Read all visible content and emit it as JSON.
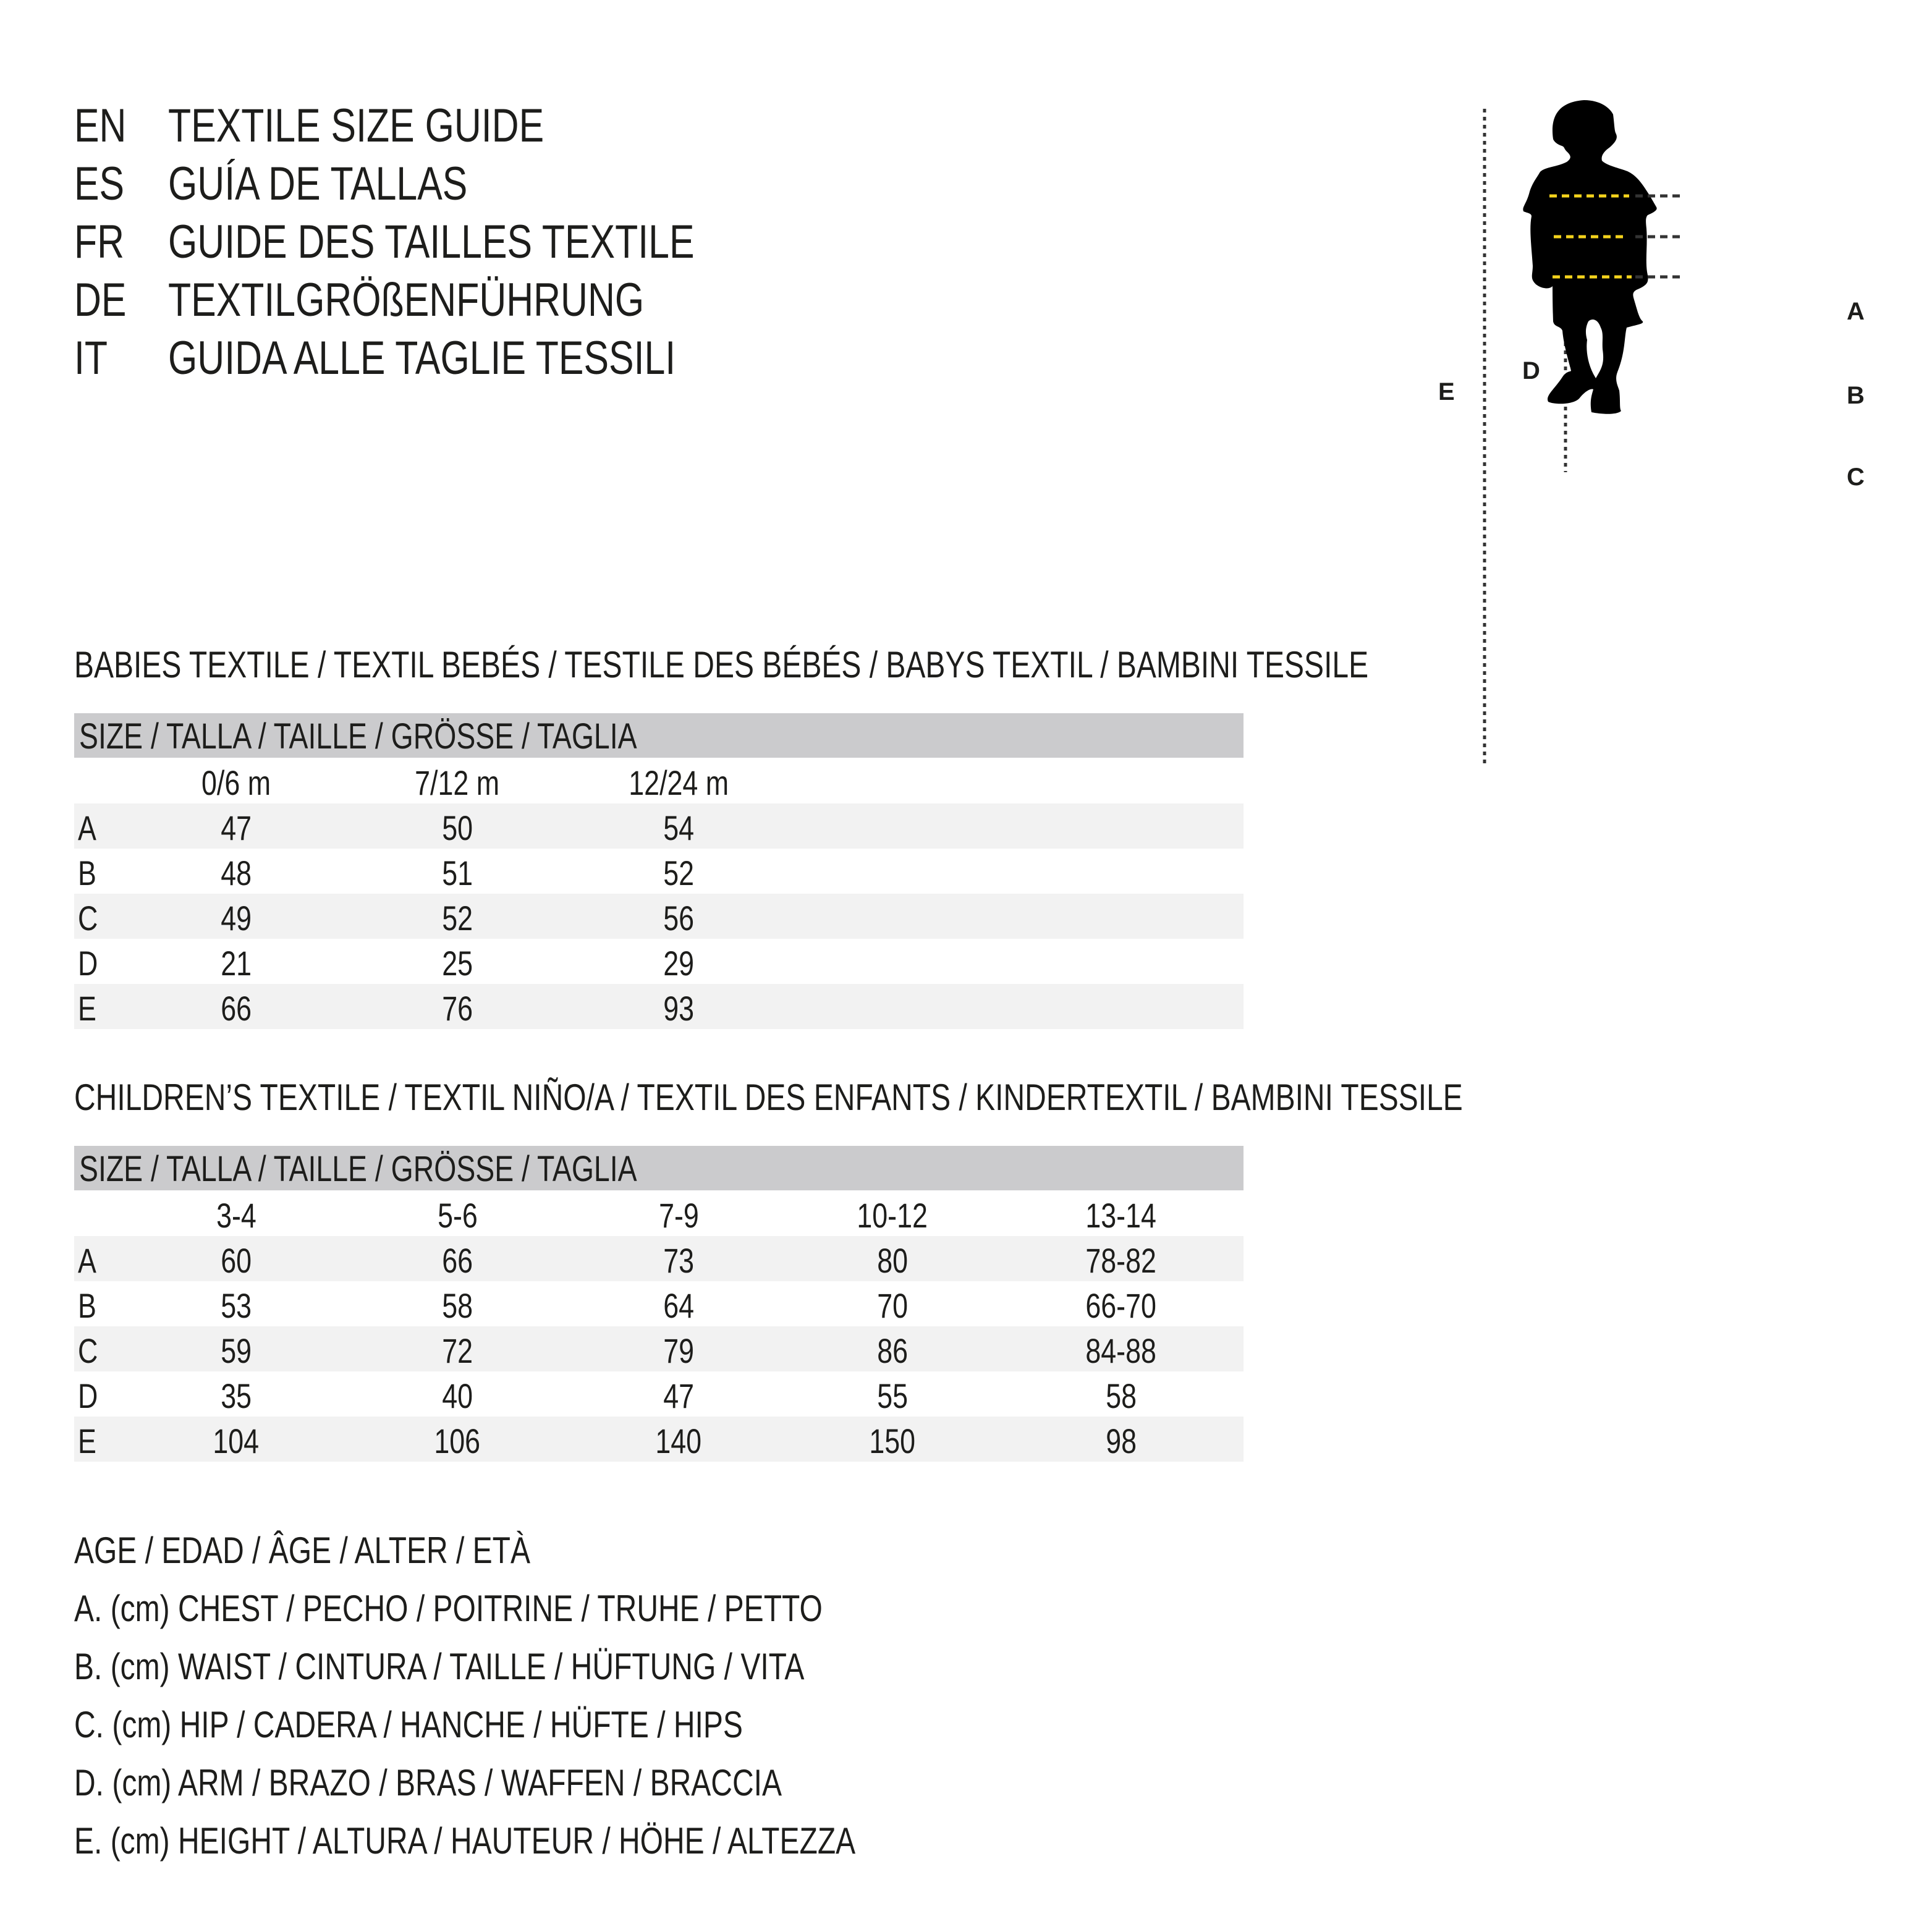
{
  "titles": [
    {
      "code": "EN",
      "text": "TEXTILE SIZE GUIDE"
    },
    {
      "code": "ES",
      "text": "GUÍA DE TALLAS"
    },
    {
      "code": "FR",
      "text": "GUIDE DES TAILLES TEXTILE"
    },
    {
      "code": "DE",
      "text": "TEXTILGRÖßENFÜHRUNG"
    },
    {
      "code": "IT",
      "text": "GUIDA ALLE TAGLIE TESSILI"
    }
  ],
  "figure": {
    "labels": {
      "A": "A",
      "B": "B",
      "C": "C",
      "D": "D",
      "E": "E"
    },
    "accent_color": "#f5d31c"
  },
  "babies": {
    "heading": "BABIES TEXTILE / TEXTIL BEBÉS / TESTILE DES BÉBÉS / BABYS TEXTIL / BAMBINI TESSILE",
    "size_header": "SIZE / TALLA / TAILLE / GRÖSSE / TAGLIA",
    "columns": [
      "0/6 m",
      "7/12 m",
      "12/24 m"
    ],
    "rows": [
      {
        "label": "A",
        "values": [
          "47",
          "50",
          "54"
        ]
      },
      {
        "label": "B",
        "values": [
          "48",
          "51",
          "52"
        ]
      },
      {
        "label": "C",
        "values": [
          "49",
          "52",
          "56"
        ]
      },
      {
        "label": "D",
        "values": [
          "21",
          "25",
          "29"
        ]
      },
      {
        "label": "E",
        "values": [
          "66",
          "76",
          "93"
        ]
      }
    ]
  },
  "children": {
    "heading": "CHILDREN’S TEXTILE / TEXTIL NIÑO/A / TEXTIL DES ENFANTS / KINDERTEXTIL / BAMBINI TESSILE",
    "size_header": "SIZE / TALLA / TAILLE / GRÖSSE / TAGLIA",
    "columns": [
      "3-4",
      "5-6",
      "7-9",
      "10-12",
      "13-14"
    ],
    "rows": [
      {
        "label": "A",
        "values": [
          "60",
          "66",
          "73",
          "80",
          "78-82"
        ]
      },
      {
        "label": "B",
        "values": [
          "53",
          "58",
          "64",
          "70",
          "66-70"
        ]
      },
      {
        "label": "C",
        "values": [
          "59",
          "72",
          "79",
          "86",
          "84-88"
        ]
      },
      {
        "label": "D",
        "values": [
          "35",
          "40",
          "47",
          "55",
          "58"
        ]
      },
      {
        "label": "E",
        "values": [
          "104",
          "106",
          "140",
          "150",
          "98"
        ]
      }
    ]
  },
  "legend": [
    "AGE / EDAD / ÂGE / ALTER / ETÀ",
    "A. (cm) CHEST / PECHO / POITRINE / TRUHE / PETTO",
    "B. (cm) WAIST / CINTURA / TAILLE / HÜFTUNG / VITA",
    "C. (cm) HIP / CADERA / HANCHE / HÜFTE / HIPS",
    "D. (cm) ARM / BRAZO / BRAS / WAFFEN / BRACCIA",
    "E. (cm) HEIGHT / ALTURA / HAUTEUR / HÖHE / ALTEZZA"
  ]
}
